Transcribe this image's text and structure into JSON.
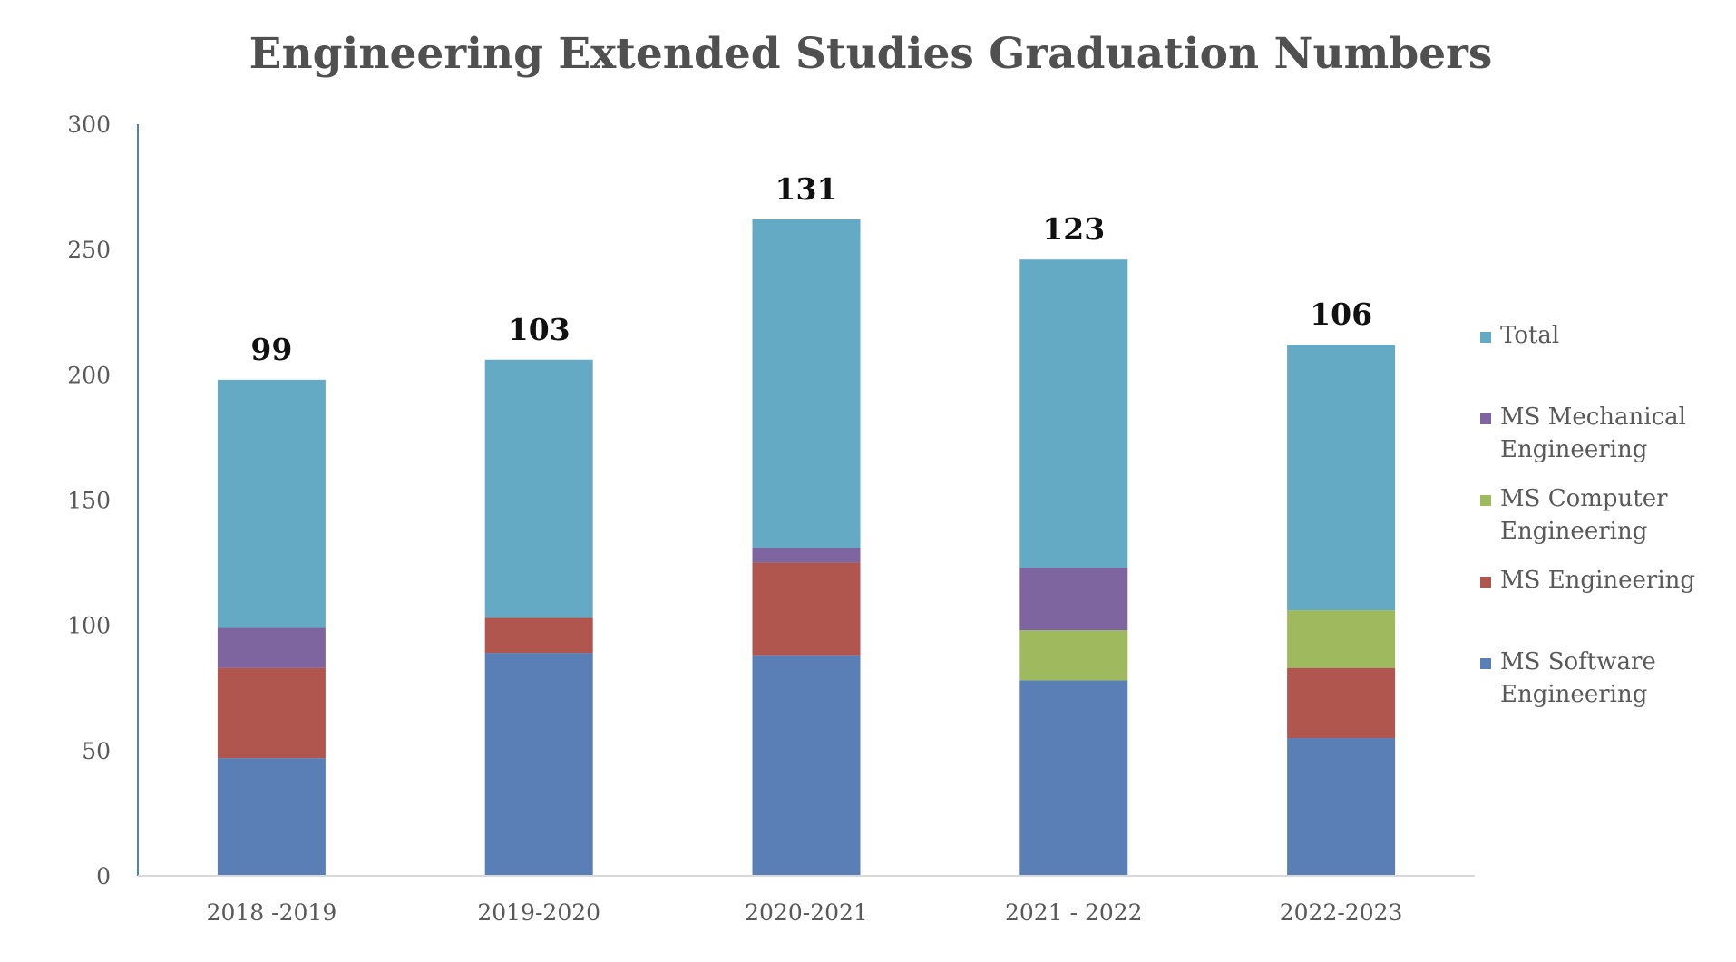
{
  "chart_data": {
    "type": "bar",
    "stacked": true,
    "title": "Engineering Extended Studies Graduation Numbers",
    "xlabel": "",
    "ylabel": "",
    "ylim": [
      0,
      300
    ],
    "yticks": [
      0,
      50,
      100,
      150,
      200,
      250,
      300
    ],
    "grid": false,
    "legend_position": "right",
    "categories": [
      "2018 -2019",
      "2019-2020",
      "2020-2021",
      "2021 - 2022",
      "2022-2023"
    ],
    "series": [
      {
        "name": "MS Software Engineering",
        "color": "#5a7fb6",
        "values": [
          47,
          89,
          88,
          78,
          55
        ]
      },
      {
        "name": "MS Engineering",
        "color": "#b0564f",
        "values": [
          36,
          14,
          37,
          0,
          28
        ]
      },
      {
        "name": "MS Computer Engineering",
        "color": "#9fba5e",
        "values": [
          0,
          0,
          0,
          20,
          23
        ]
      },
      {
        "name": "MS Mechanical Engineering",
        "color": "#7f65a0",
        "values": [
          16,
          0,
          6,
          25,
          0
        ]
      },
      {
        "name": "Total",
        "color": "#64aac4",
        "values": [
          99,
          103,
          131,
          123,
          106
        ]
      }
    ],
    "data_labels": [
      "99",
      "103",
      "131",
      "123",
      "106"
    ]
  }
}
